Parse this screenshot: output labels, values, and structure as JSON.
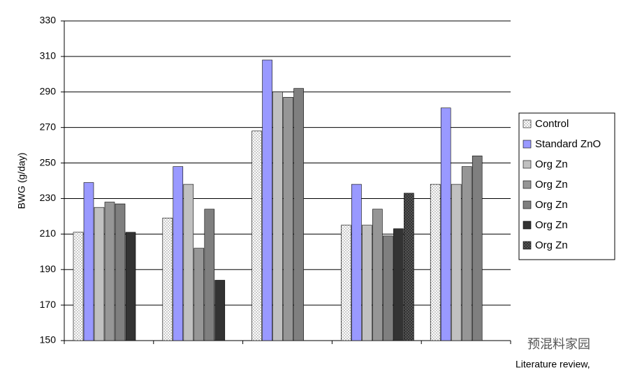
{
  "chart_data": {
    "type": "bar",
    "y_label": "BWG (g/day)",
    "categories": [
      null,
      null,
      null,
      null,
      null
    ],
    "series": [
      {
        "name": "Control",
        "color": "#ffffff",
        "pattern": "dots",
        "values": [
          211,
          219,
          268,
          215,
          238
        ]
      },
      {
        "name": "Standard ZnO",
        "color": "#9999ff",
        "values": [
          239,
          248,
          308,
          238,
          281
        ]
      },
      {
        "name": "Org Zn",
        "color": "#c0c0c0",
        "values": [
          225,
          238,
          290,
          215,
          238
        ]
      },
      {
        "name": "Org Zn",
        "color": "#969696",
        "values": [
          228,
          202,
          287,
          224,
          248
        ]
      },
      {
        "name": "Org Zn",
        "color": "#7f7f7f",
        "values": [
          227,
          224,
          292,
          209,
          254
        ]
      },
      {
        "name": "Org Zn",
        "color": "#333333",
        "values": [
          211,
          184,
          null,
          213,
          null
        ]
      },
      {
        "name": "Org Zn",
        "color": "#333333",
        "pattern": "dots",
        "values": [
          null,
          null,
          null,
          233,
          null
        ]
      }
    ],
    "ylim": [
      150,
      330
    ],
    "yticks": [
      150,
      170,
      190,
      210,
      230,
      250,
      270,
      290,
      310,
      330
    ],
    "grid": true,
    "legend": "right",
    "annotations": [
      "预混料家园",
      "Literature review,"
    ]
  }
}
